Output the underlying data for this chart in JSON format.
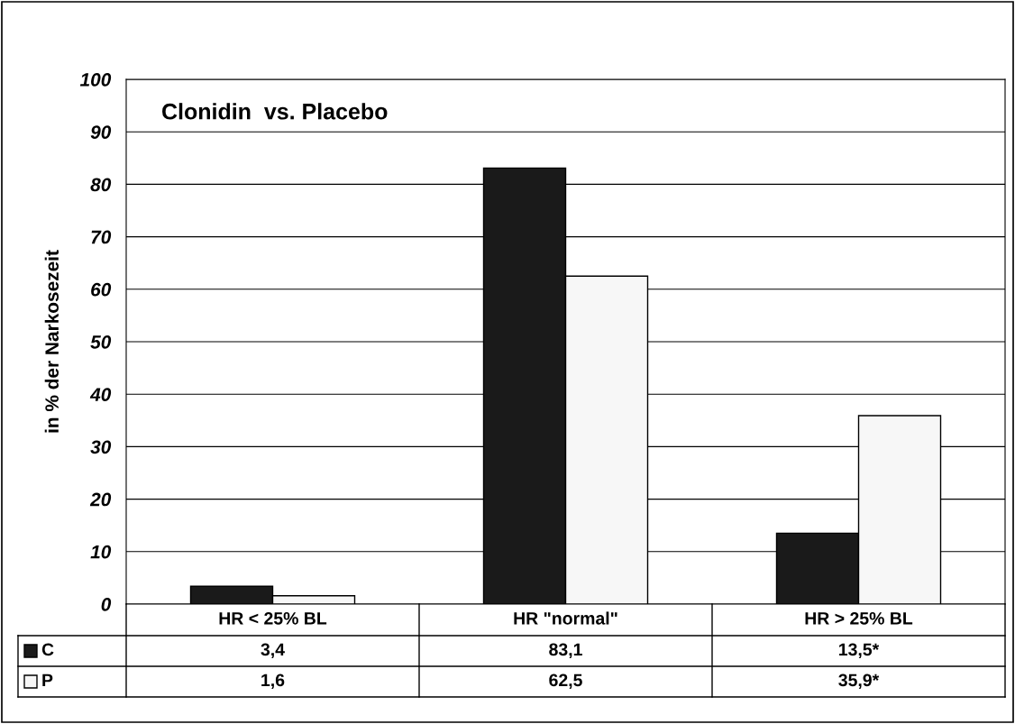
{
  "chart_data": {
    "type": "bar",
    "title": "Clonidin  vs. Placebo",
    "ylabel": "in % der Narkosezeit",
    "categories": [
      "HR < 25% BL",
      "HR \"normal\"",
      "HR > 25% BL"
    ],
    "series": [
      {
        "name": "C",
        "color": "#1a1a1a",
        "values": [
          3.4,
          83.1,
          13.5
        ],
        "value_labels": [
          "3,4",
          "83,1",
          "13,5*"
        ]
      },
      {
        "name": "P",
        "color": "#f7f7f7",
        "values": [
          1.6,
          62.5,
          35.9
        ],
        "value_labels": [
          "1,6",
          "62,5",
          "35,9*"
        ]
      }
    ],
    "ylim": [
      0,
      100
    ],
    "yticks": [
      0,
      10,
      20,
      30,
      40,
      50,
      60,
      70,
      80,
      90,
      100
    ],
    "grid": "y",
    "legend": "bottom"
  }
}
